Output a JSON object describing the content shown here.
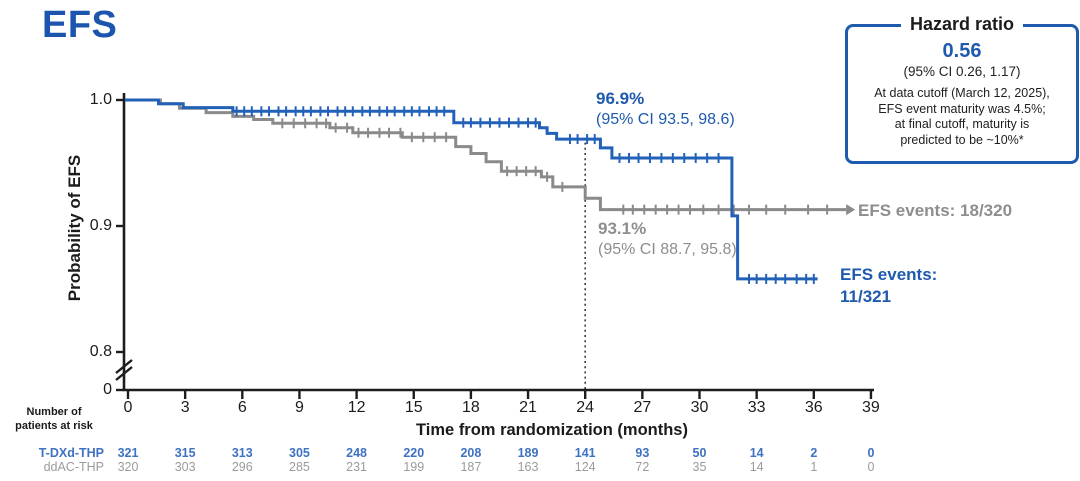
{
  "title": "EFS",
  "colors": {
    "blue": "#1e5aae",
    "blue_curve": "#2261b8",
    "gray_curve": "#8a8a8a",
    "gray_text": "#8e8e8e",
    "table_blue": "#3e72c2",
    "table_gray": "#9b9b9b",
    "axis": "#1d1d1d"
  },
  "hazard_box": {
    "title": "Hazard ratio",
    "value": "0.56",
    "ci": "(95% CI 0.26, 1.17)",
    "note_lines": [
      "At data cutoff (March 12, 2025),",
      "EFS event maturity was 4.5%;",
      "at final cutoff, maturity is",
      "predicted to be ~10%*"
    ]
  },
  "chart_data": {
    "type": "line",
    "subtype": "kaplan-meier-step",
    "title": "EFS",
    "xlabel": "Time from randomization (months)",
    "ylabel": "Probability of EFS",
    "xlim": [
      0,
      39
    ],
    "xticks": [
      0,
      3,
      6,
      9,
      12,
      15,
      18,
      21,
      24,
      27,
      30,
      33,
      36,
      39
    ],
    "yticks": [
      {
        "label": "1.0",
        "value": 1.0
      },
      {
        "label": "0.9",
        "value": 0.9
      },
      {
        "label": "0.8",
        "value": 0.8
      }
    ],
    "y_origin_label": "0",
    "axis_break": true,
    "grid": false,
    "landmark_line_x": 24,
    "series": [
      {
        "name": "T-DXd-THP",
        "color_key": "blue_curve",
        "end": 36.2,
        "arrow_end": false,
        "landmark": {
          "x": 24,
          "value": "96.9%",
          "ci": "(95% CI 93.5, 98.6)"
        },
        "events_lines": [
          "EFS events:",
          "11/321"
        ],
        "steps": [
          [
            0,
            1.0
          ],
          [
            1.6,
            0.997
          ],
          [
            2.9,
            0.994
          ],
          [
            5.5,
            0.991
          ],
          [
            17.1,
            0.982
          ],
          [
            21.6,
            0.978
          ],
          [
            22.0,
            0.9735
          ],
          [
            22.5,
            0.969
          ],
          [
            24.8,
            0.962
          ],
          [
            25.4,
            0.954
          ],
          [
            31.7,
            0.908
          ],
          [
            32.0,
            0.858
          ]
        ],
        "censors": [
          5.7,
          6.1,
          6.5,
          7.0,
          7.4,
          7.9,
          8.3,
          8.8,
          9.2,
          9.6,
          10.1,
          10.5,
          11.0,
          11.4,
          11.8,
          12.3,
          12.7,
          13.2,
          13.6,
          14.0,
          14.5,
          14.9,
          15.3,
          15.8,
          16.2,
          16.6,
          17.6,
          18.0,
          18.5,
          19.0,
          19.5,
          20.0,
          20.5,
          21.0,
          21.4,
          23.2,
          23.6,
          24.1,
          24.5,
          25.8,
          26.3,
          26.8,
          27.4,
          28.0,
          28.6,
          29.2,
          29.8,
          30.4,
          31.0,
          32.6,
          33.0,
          33.5,
          34.0,
          34.5,
          35.1,
          35.6,
          36.0
        ]
      },
      {
        "name": "ddAC-THP",
        "color_key": "gray_curve",
        "end": 37.7,
        "arrow_end": true,
        "landmark": {
          "x": 24,
          "value": "93.1%",
          "ci": "(95% CI 88.7, 95.8)"
        },
        "events_lines": [
          "EFS events: 18/320"
        ],
        "steps": [
          [
            0,
            1.0
          ],
          [
            1.7,
            0.997
          ],
          [
            2.7,
            0.9935
          ],
          [
            4.1,
            0.99
          ],
          [
            5.5,
            0.987
          ],
          [
            6.6,
            0.9845
          ],
          [
            7.6,
            0.9815
          ],
          [
            10.6,
            0.978
          ],
          [
            11.8,
            0.974
          ],
          [
            14.4,
            0.9705
          ],
          [
            17.2,
            0.963
          ],
          [
            18.0,
            0.9575
          ],
          [
            18.8,
            0.951
          ],
          [
            19.6,
            0.9435
          ],
          [
            21.7,
            0.939
          ],
          [
            22.3,
            0.931
          ],
          [
            24.0,
            0.922
          ],
          [
            24.8,
            0.913
          ]
        ],
        "censors": [
          8.1,
          8.7,
          9.3,
          9.9,
          10.4,
          10.9,
          11.5,
          12.1,
          12.6,
          13.2,
          13.7,
          14.3,
          14.9,
          15.5,
          16.1,
          16.7,
          19.9,
          20.4,
          20.9,
          21.4,
          22.0,
          22.8,
          26.0,
          26.5,
          27.1,
          27.7,
          28.3,
          28.9,
          29.5,
          30.2,
          31.0,
          31.8,
          32.6,
          33.5,
          34.5,
          35.7,
          36.7
        ]
      }
    ]
  },
  "risk_table": {
    "header": [
      "Number of",
      "patients at risk"
    ],
    "rows": [
      {
        "name": "T-DXd-THP",
        "values": [
          321,
          315,
          313,
          305,
          248,
          220,
          208,
          189,
          141,
          93,
          50,
          14,
          2,
          0
        ]
      },
      {
        "name": "ddAC-THP",
        "values": [
          320,
          303,
          296,
          285,
          231,
          199,
          187,
          163,
          124,
          72,
          35,
          14,
          1,
          0
        ]
      }
    ]
  }
}
